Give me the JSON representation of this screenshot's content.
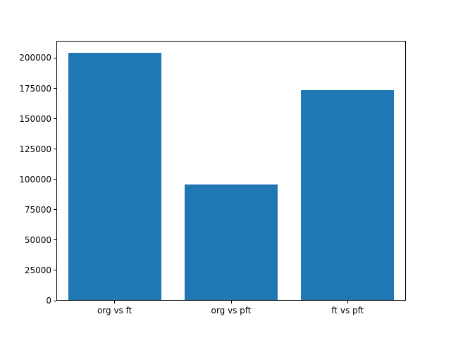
{
  "chart_data": {
    "type": "bar",
    "title": "",
    "xlabel": "",
    "ylabel": "",
    "categories": [
      "org vs ft",
      "org vs pft",
      "ft vs pft"
    ],
    "values": [
      204000,
      95000,
      173000
    ],
    "ylim": [
      0,
      214200
    ],
    "yticks": [
      0,
      25000,
      50000,
      75000,
      100000,
      125000,
      150000,
      175000,
      200000
    ],
    "bar_color": "#1f77b4",
    "grid": false,
    "legend": null
  }
}
